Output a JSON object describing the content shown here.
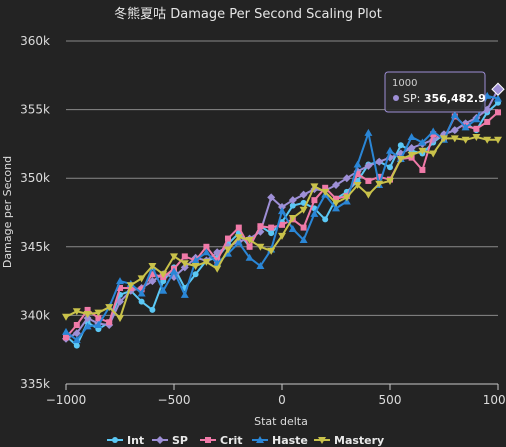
{
  "chart_data": {
    "type": "line",
    "title": "冬熊夏咕 Damage Per Second Scaling Plot",
    "xlabel": "Stat delta",
    "ylabel": "Damage per Second",
    "xlim": [
      -1000,
      1000
    ],
    "ylim": [
      335000,
      360000
    ],
    "xticks": [
      -1000,
      -500,
      0,
      500,
      1000
    ],
    "xtick_labels": [
      "−1000",
      "−500",
      "0",
      "500",
      "1000"
    ],
    "yticks": [
      335000,
      340000,
      345000,
      350000,
      355000,
      360000
    ],
    "ytick_labels": [
      "335k",
      "340k",
      "345k",
      "350k",
      "355k",
      "360k"
    ],
    "grid": "horizontal",
    "legend_position": "bottom",
    "x": [
      -1000,
      -950,
      -900,
      -850,
      -800,
      -750,
      -700,
      -650,
      -600,
      -550,
      -500,
      -450,
      -400,
      -350,
      -300,
      -250,
      -200,
      -150,
      -100,
      -50,
      0,
      50,
      100,
      150,
      200,
      250,
      300,
      350,
      400,
      450,
      500,
      550,
      600,
      650,
      700,
      750,
      800,
      850,
      900,
      950,
      1000
    ],
    "series": [
      {
        "name": "Int",
        "color": "#5bc8f5",
        "marker": "circle",
        "values": [
          338500,
          337800,
          339500,
          339000,
          339500,
          341500,
          341800,
          341000,
          340400,
          342500,
          343500,
          342000,
          343000,
          344000,
          344200,
          345200,
          346000,
          345000,
          346500,
          346000,
          346800,
          348000,
          348200,
          347800,
          347000,
          348500,
          349000,
          349800,
          351000,
          351200,
          350800,
          352400,
          352000,
          351800,
          352600,
          353200,
          353500,
          354000,
          353500,
          354800,
          355500
        ]
      },
      {
        "name": "SP",
        "color": "#9e8fd6",
        "marker": "diamond",
        "values": [
          338300,
          338700,
          339800,
          339400,
          339300,
          341000,
          341800,
          342000,
          342500,
          343000,
          342800,
          343500,
          344200,
          344000,
          344600,
          345000,
          345400,
          345600,
          346100,
          348600,
          347900,
          348400,
          348800,
          349200,
          349100,
          349500,
          350000,
          350500,
          350900,
          351200,
          351500,
          351800,
          352200,
          352500,
          352800,
          353200,
          353500,
          354000,
          354400,
          355000,
          356482.9
        ]
      },
      {
        "name": "Crit",
        "color": "#f07aa8",
        "marker": "square",
        "values": [
          338400,
          339300,
          340400,
          339800,
          339500,
          342000,
          342000,
          341900,
          343000,
          342800,
          343400,
          344300,
          344000,
          345000,
          344000,
          345600,
          346400,
          345000,
          346500,
          346400,
          346600,
          347000,
          346400,
          348400,
          349300,
          348500,
          348700,
          350300,
          349800,
          350100,
          349900,
          351400,
          351500,
          350600,
          353200,
          352900,
          354500,
          353800,
          353600,
          354100,
          354800
        ]
      },
      {
        "name": "Haste",
        "color": "#2a86d6",
        "marker": "triangle",
        "values": [
          338800,
          338200,
          339200,
          339300,
          340600,
          342500,
          342300,
          341600,
          343500,
          341800,
          343200,
          341500,
          344000,
          344600,
          343800,
          344500,
          345300,
          344200,
          343600,
          344800,
          347600,
          346300,
          345500,
          347400,
          348800,
          347800,
          348300,
          351000,
          353300,
          349500,
          352000,
          351400,
          353000,
          352600,
          353400,
          352800,
          354600,
          353700,
          354300,
          356000,
          355800
        ]
      },
      {
        "name": "Mastery",
        "color": "#c9c24a",
        "marker": "triangle-down",
        "values": [
          339900,
          340300,
          340100,
          340200,
          340600,
          339800,
          342200,
          342700,
          343600,
          343000,
          344300,
          343800,
          343600,
          343900,
          343400,
          344800,
          345700,
          345500,
          345000,
          344700,
          345800,
          347100,
          347700,
          349400,
          349000,
          348200,
          348600,
          349500,
          348800,
          349600,
          349800,
          351400,
          351700,
          352000,
          351800,
          352900,
          352900,
          352800,
          353000,
          352800,
          352800
        ]
      }
    ],
    "tooltip": {
      "title": "1000",
      "series_name": "SP",
      "label": "SP: ",
      "value": "356,482.9"
    }
  }
}
